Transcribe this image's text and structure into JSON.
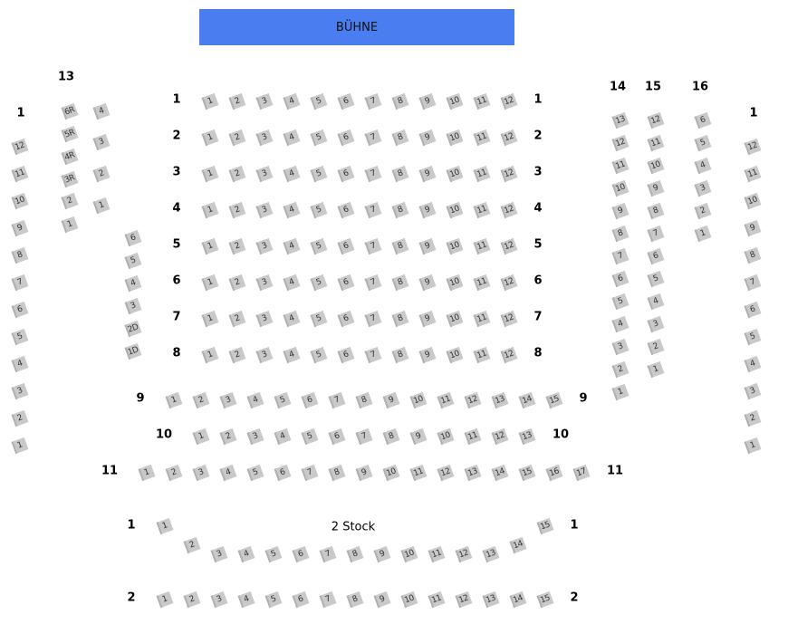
{
  "stage_label": "BÜHNE",
  "floor_label": "2 Stock",
  "colors": {
    "stage": "#4a7ef0",
    "seat": "#c9c9c9"
  },
  "sections": {
    "parkett": [
      {
        "row": "1",
        "seats": [
          "1",
          "2",
          "3",
          "4",
          "5",
          "6",
          "7",
          "8",
          "9",
          "10",
          "11",
          "12"
        ]
      },
      {
        "row": "2",
        "seats": [
          "1",
          "2",
          "3",
          "4",
          "5",
          "6",
          "7",
          "8",
          "9",
          "10",
          "11",
          "12"
        ]
      },
      {
        "row": "3",
        "seats": [
          "1",
          "2",
          "3",
          "4",
          "5",
          "6",
          "7",
          "8",
          "9",
          "10",
          "11",
          "12"
        ]
      },
      {
        "row": "4",
        "seats": [
          "1",
          "2",
          "3",
          "4",
          "5",
          "6",
          "7",
          "8",
          "9",
          "10",
          "11",
          "12"
        ]
      },
      {
        "row": "5",
        "seats": [
          "1",
          "2",
          "3",
          "4",
          "5",
          "6",
          "7",
          "8",
          "9",
          "10",
          "11",
          "12"
        ]
      },
      {
        "row": "6",
        "seats": [
          "1",
          "2",
          "3",
          "4",
          "5",
          "6",
          "7",
          "8",
          "9",
          "10",
          "11",
          "12"
        ]
      },
      {
        "row": "7",
        "seats": [
          "1",
          "2",
          "3",
          "4",
          "5",
          "6",
          "7",
          "8",
          "9",
          "10",
          "11",
          "12"
        ]
      },
      {
        "row": "8",
        "seats": [
          "1",
          "2",
          "3",
          "4",
          "5",
          "6",
          "7",
          "8",
          "9",
          "10",
          "11",
          "12"
        ]
      },
      {
        "row": "9",
        "seats": [
          "1",
          "2",
          "3",
          "4",
          "5",
          "6",
          "7",
          "8",
          "9",
          "10",
          "11",
          "12",
          "13",
          "14",
          "15"
        ]
      },
      {
        "row": "10",
        "seats": [
          "1",
          "2",
          "3",
          "4",
          "5",
          "6",
          "7",
          "8",
          "9",
          "10",
          "11",
          "12",
          "13"
        ]
      },
      {
        "row": "11",
        "seats": [
          "1",
          "2",
          "3",
          "4",
          "5",
          "6",
          "7",
          "8",
          "9",
          "10",
          "11",
          "12",
          "13",
          "14",
          "15",
          "16",
          "17"
        ]
      }
    ],
    "left_wall": {
      "row": "1",
      "seats": [
        "12",
        "11",
        "10",
        "9",
        "8",
        "7",
        "6",
        "5",
        "4",
        "3",
        "2",
        "1"
      ]
    },
    "box13": {
      "row": "13",
      "colA": [
        "6R",
        "5R",
        "4R",
        "3R",
        "2",
        "1"
      ],
      "colB": [
        "4",
        "3",
        "2",
        "1"
      ]
    },
    "left_side": {
      "seats": [
        "6",
        "5",
        "4",
        "3",
        "2D",
        "1D"
      ]
    },
    "right_cols": [
      {
        "row": "14",
        "seats": [
          "13",
          "12",
          "11",
          "10",
          "9",
          "8",
          "7",
          "6",
          "5",
          "4",
          "3",
          "2",
          "1"
        ]
      },
      {
        "row": "15",
        "seats": [
          "12",
          "11",
          "10",
          "9",
          "8",
          "7",
          "6",
          "5",
          "4",
          "3",
          "2",
          "1"
        ]
      },
      {
        "row": "16",
        "seats": [
          "6",
          "5",
          "4",
          "3",
          "2",
          "1"
        ]
      }
    ],
    "right_wall": {
      "row": "1",
      "seats": [
        "12",
        "11",
        "10",
        "9",
        "8",
        "7",
        "6",
        "5",
        "4",
        "3",
        "2",
        "1"
      ]
    },
    "stock2": [
      {
        "row": "1",
        "seats": [
          "1",
          "2",
          "3",
          "4",
          "5",
          "6",
          "7",
          "8",
          "9",
          "10",
          "11",
          "12",
          "13",
          "14",
          "15"
        ]
      },
      {
        "row": "2",
        "seats": [
          "1",
          "2",
          "3",
          "4",
          "5",
          "6",
          "7",
          "8",
          "9",
          "10",
          "11",
          "12",
          "13",
          "14",
          "15"
        ]
      }
    ]
  }
}
